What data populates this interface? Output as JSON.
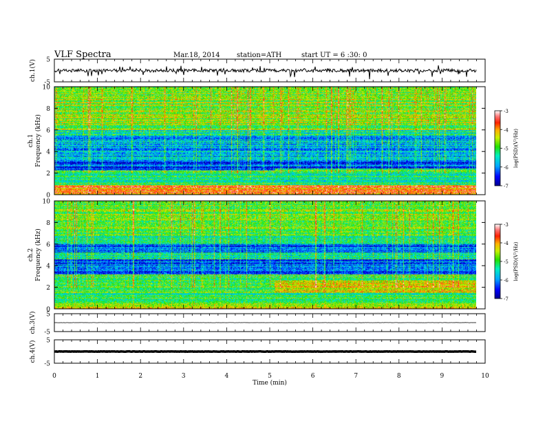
{
  "header": {
    "title": "VLF  Spectra",
    "date": "Mar.18, 2014",
    "station": "station=ATH",
    "start": "start  UT  =   6  :30: 0"
  },
  "chart_data": [
    {
      "type": "line",
      "panel": "ch1-waveform",
      "ylabel": "ch.1(V)",
      "ylim": [
        -5,
        5
      ],
      "yticks": [
        "5",
        "-5"
      ],
      "xlim": [
        0,
        10
      ],
      "data_end_min": 9.8,
      "baseline": 0,
      "series": [
        {
          "values": "broadband noise waveform near 0 V with frequent negative spikes to about -3 V"
        }
      ]
    },
    {
      "type": "heatmap",
      "panel": "ch1-spectrogram",
      "ylabel": "ch.1\nFrequency (kHz)",
      "ylim": [
        0,
        10
      ],
      "yticks": [
        "0",
        "2",
        "4",
        "6",
        "8",
        "10"
      ],
      "xlim": [
        0,
        10
      ],
      "data_end_min": 9.8,
      "colorbar": {
        "label": "log(PSD)(V²/Hz)",
        "range": [
          -7,
          -3
        ],
        "ticks": [
          "-3",
          "-4",
          "-5",
          "-6",
          "-7"
        ]
      },
      "bands": [
        {
          "from_khz": 0,
          "to_khz": 0.9,
          "level": -4.0
        },
        {
          "from_khz": 0.9,
          "to_khz": 2.2,
          "level": -5.2
        },
        {
          "from_khz": 2.2,
          "to_khz": 3.2,
          "level": -6.4
        },
        {
          "from_khz": 3.2,
          "to_khz": 5.5,
          "level": -6.0
        },
        {
          "from_khz": 5.5,
          "to_khz": 6.0,
          "level": -5.5
        },
        {
          "from_khz": 6.0,
          "to_khz": 10,
          "level": -4.9
        }
      ],
      "change_time_min": 5.1,
      "after_change": {
        "from_khz": 0.9,
        "to_khz": 2.4,
        "level": -5.3
      }
    },
    {
      "type": "heatmap",
      "panel": "ch2-spectrogram",
      "ylabel": "ch.2\nFrequency (kHz)",
      "ylim": [
        0,
        10
      ],
      "yticks": [
        "0",
        "2",
        "4",
        "6",
        "8",
        "10"
      ],
      "xlim": [
        0,
        10
      ],
      "data_end_min": 9.8,
      "colorbar": {
        "label": "log(PSD)(V²/Hz)",
        "range": [
          -7,
          -3
        ],
        "ticks": [
          "-3",
          "-4",
          "-5",
          "-6",
          "-7"
        ]
      },
      "bands": [
        {
          "from_khz": 0,
          "to_khz": 0.5,
          "level": -4.3
        },
        {
          "from_khz": 0.5,
          "to_khz": 3.2,
          "level": -5.1
        },
        {
          "from_khz": 3.2,
          "to_khz": 4.6,
          "level": -6.3
        },
        {
          "from_khz": 4.6,
          "to_khz": 5.2,
          "level": -5.4
        },
        {
          "from_khz": 5.2,
          "to_khz": 6.0,
          "level": -6.4
        },
        {
          "from_khz": 6.0,
          "to_khz": 7.0,
          "level": -5.3
        },
        {
          "from_khz": 7.0,
          "to_khz": 10,
          "level": -5.0
        }
      ],
      "change_time_min": 5.1,
      "after_change": {
        "from_khz": 1.5,
        "to_khz": 2.6,
        "level": -4.4
      }
    },
    {
      "type": "line",
      "panel": "ch3-waveform",
      "ylabel": "ch.3(V)",
      "ylim": [
        -5,
        5
      ],
      "yticks": [
        "5",
        "-5"
      ],
      "xlim": [
        0,
        10
      ],
      "data_end_min": 9.8,
      "baseline": 0,
      "series": [
        {
          "values": "nearly flat trace at about 0 V"
        }
      ]
    },
    {
      "type": "line",
      "panel": "ch4-waveform",
      "ylabel": "ch.4(V)",
      "ylim": [
        -5,
        5
      ],
      "yticks": [
        "5",
        "-5"
      ],
      "xlim": [
        0,
        10
      ],
      "data_end_min": 9.8,
      "baseline": 0,
      "series": [
        {
          "values": "thick dense trace at about 0 V"
        }
      ]
    }
  ],
  "x_axis": {
    "label": "Time  (min)",
    "ticks": [
      "0",
      "1",
      "2",
      "3",
      "4",
      "5",
      "6",
      "7",
      "8",
      "9",
      "10"
    ]
  }
}
